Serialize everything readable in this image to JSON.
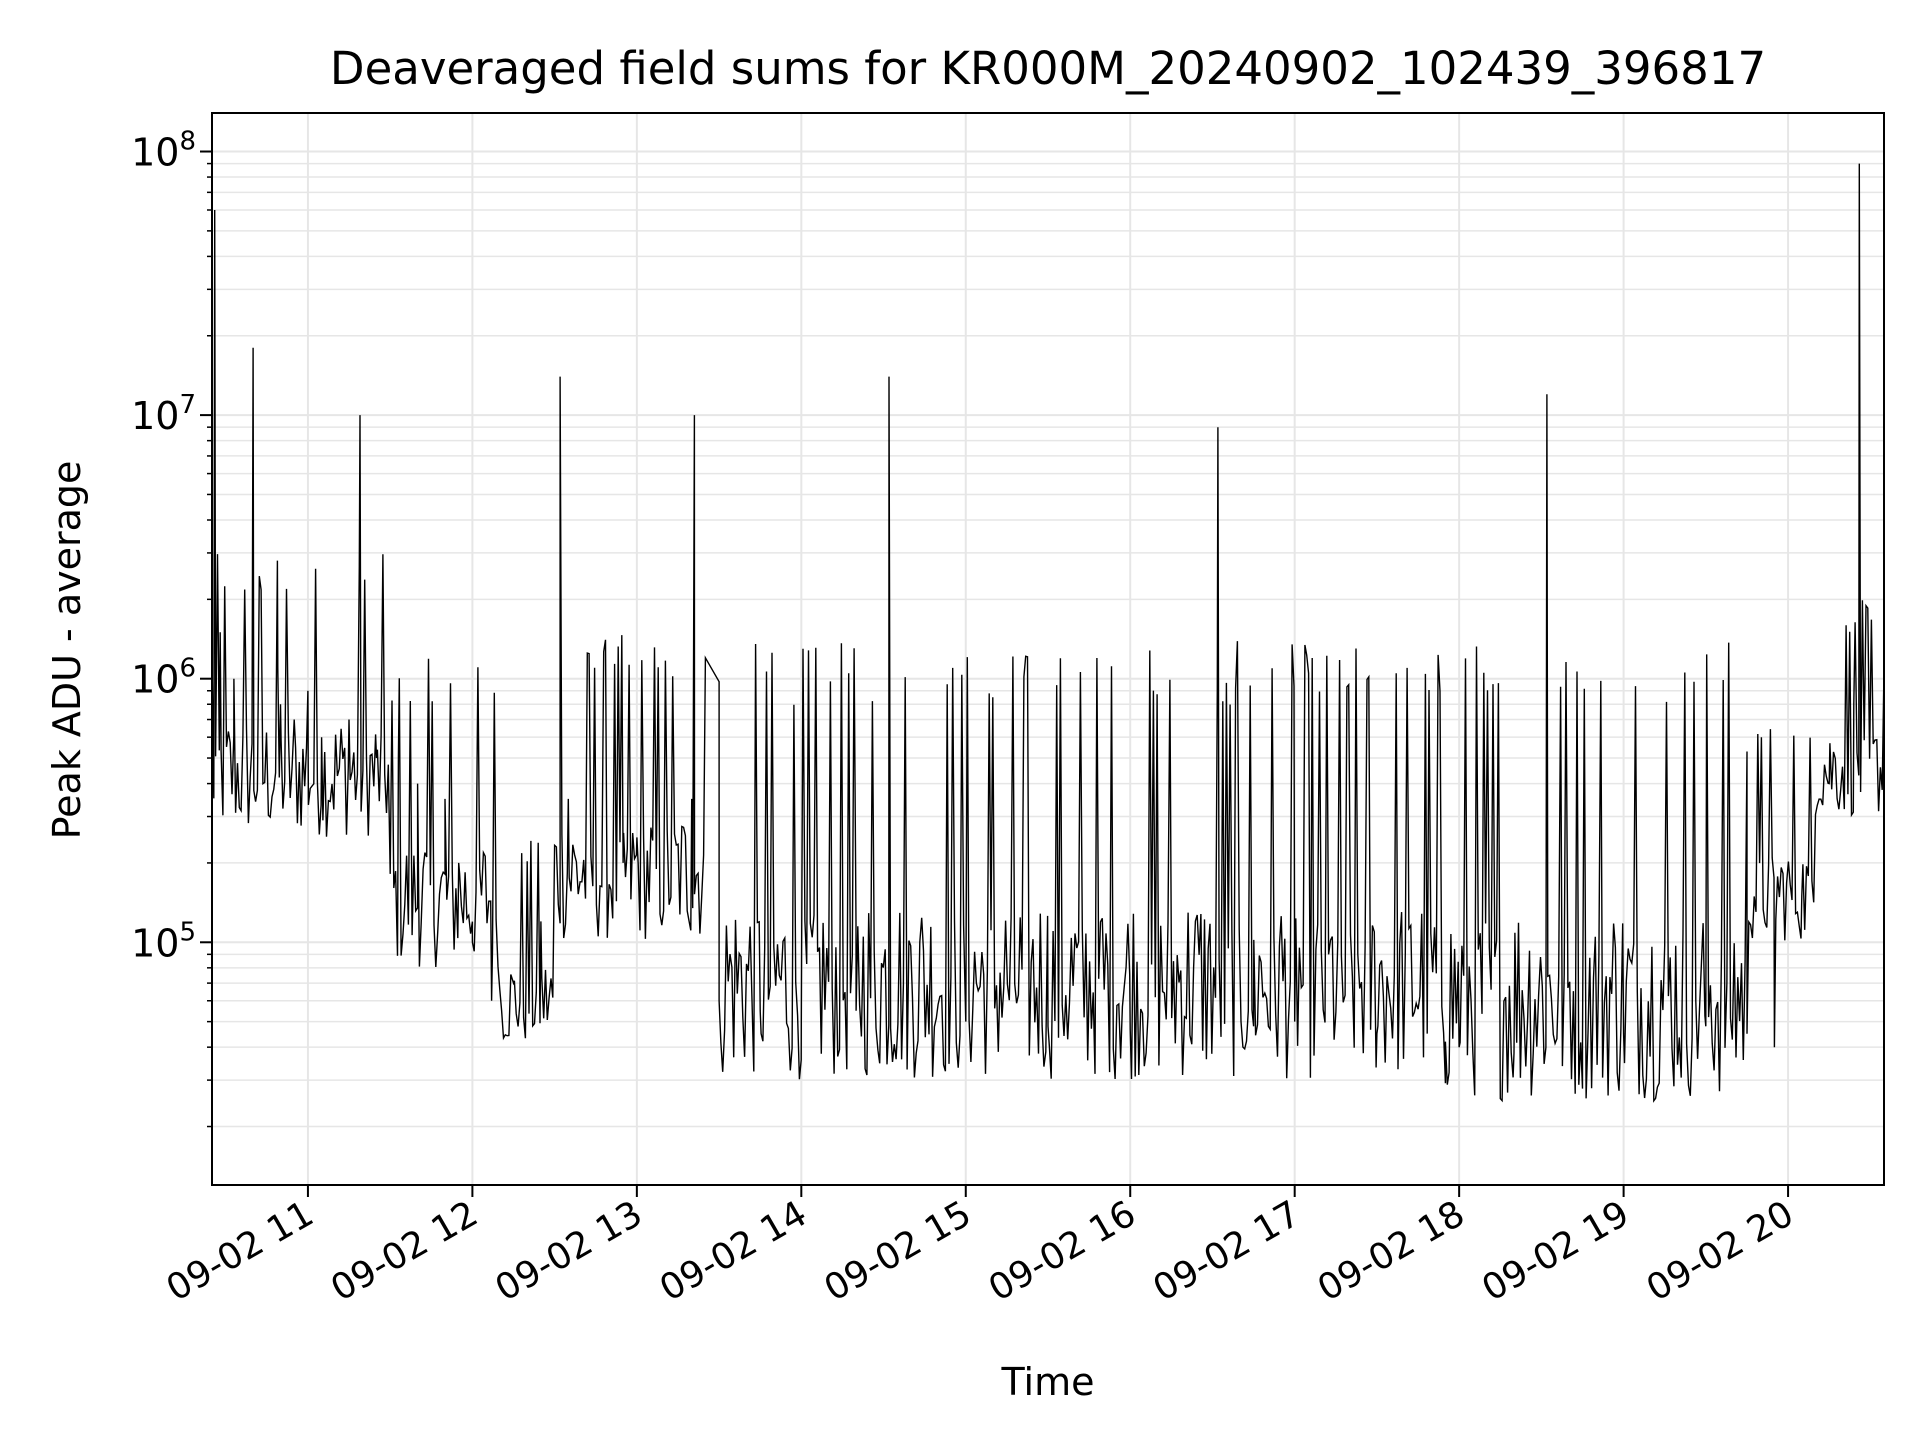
{
  "chart_data": {
    "type": "line",
    "title": "Deaveraged field sums for KR000M_20240902_102439_396817",
    "xlabel": "Time",
    "ylabel": "Peak ADU - average",
    "yscale": "log",
    "grid": true,
    "line_color": "#000000",
    "xlim": [
      "2024-09-02 10:25",
      "2024-09-02 20:35"
    ],
    "ylim": [
      12000,
      140000000
    ],
    "x_ticks": [
      "09-02 11",
      "09-02 12",
      "09-02 13",
      "09-02 14",
      "09-02 15",
      "09-02 16",
      "09-02 17",
      "09-02 18",
      "09-02 19",
      "09-02 20"
    ],
    "y_ticks": [
      {
        "base": "10",
        "exp": "5",
        "value": 100000
      },
      {
        "base": "10",
        "exp": "6",
        "value": 1000000
      },
      {
        "base": "10",
        "exp": "7",
        "value": 10000000
      },
      {
        "base": "10",
        "exp": "8",
        "value": 100000000
      }
    ],
    "series": [
      {
        "x": [
          "2024-09-02 10:25",
          "2024-09-02 10:26",
          "2024-09-02 10:28",
          "2024-09-02 10:33",
          "2024-09-02 10:40",
          "2024-09-02 10:49",
          "2024-09-02 10:50",
          "2024-09-02 10:55",
          "2024-09-02 11:00",
          "2024-09-02 11:05",
          "2024-09-02 11:15",
          "2024-09-02 11:19",
          "2024-09-02 11:25",
          "2024-09-02 11:33",
          "2024-09-02 11:40",
          "2024-09-02 11:50",
          "2024-09-02 11:55",
          "2024-09-02 12:00",
          "2024-09-02 12:07",
          "2024-09-02 12:15",
          "2024-09-02 12:25",
          "2024-09-02 12:32",
          "2024-09-02 12:35",
          "2024-09-02 12:45",
          "2024-09-02 12:55",
          "2024-09-02 13:00",
          "2024-09-02 13:10",
          "2024-09-02 13:20",
          "2024-09-02 13:21",
          "2024-09-02 13:25",
          "2024-09-02 13:30",
          "2024-09-02 13:35",
          "2024-09-02 13:45",
          "2024-09-02 14:00",
          "2024-09-02 14:20",
          "2024-09-02 14:32",
          "2024-09-02 14:45",
          "2024-09-02 15:00",
          "2024-09-02 15:30",
          "2024-09-02 16:00",
          "2024-09-02 16:32",
          "2024-09-02 16:45",
          "2024-09-02 17:00",
          "2024-09-02 17:30",
          "2024-09-02 17:55",
          "2024-09-02 18:00",
          "2024-09-02 18:20",
          "2024-09-02 18:32",
          "2024-09-02 18:45",
          "2024-09-02 19:00",
          "2024-09-02 19:30",
          "2024-09-02 19:45",
          "2024-09-02 19:55",
          "2024-09-02 20:05",
          "2024-09-02 20:15",
          "2024-09-02 20:24",
          "2024-09-02 20:26",
          "2024-09-02 20:35"
        ],
        "y": [
          1200000,
          60000000,
          1500000,
          1000000,
          18000000,
          1100000,
          800000,
          700000,
          900000,
          600000,
          700000,
          10000000,
          500000,
          500000,
          400000,
          350000,
          200000,
          100000,
          60000,
          70000,
          120000,
          14000000,
          350000,
          300000,
          200000,
          250000,
          300000,
          350000,
          10000000,
          1200000,
          60000,
          55000,
          55000,
          50000,
          55000,
          14000000,
          55000,
          50000,
          48000,
          47000,
          9000000,
          48000,
          50000,
          45000,
          42000,
          40000,
          38000,
          12000000,
          42000,
          45000,
          48000,
          45000,
          40000,
          150000,
          400000,
          800000,
          90000000,
          1100000
        ],
        "bursts": [
          {
            "start": "2024-09-02 10:25",
            "end": "2024-09-02 11:30",
            "low": 250000,
            "high": 3000000
          },
          {
            "start": "2024-09-02 11:30",
            "end": "2024-09-02 12:10",
            "low": 80000,
            "high": 1200000
          },
          {
            "start": "2024-09-02 12:10",
            "end": "2024-09-02 12:30",
            "low": 40000,
            "high": 250000
          },
          {
            "start": "2024-09-02 12:30",
            "end": "2024-09-02 13:25",
            "low": 100000,
            "high": 1500000
          },
          {
            "start": "2024-09-02 13:30",
            "end": "2024-09-02 17:55",
            "low": 30000,
            "high": 1400000
          },
          {
            "start": "2024-09-02 17:55",
            "end": "2024-09-02 19:45",
            "low": 25000,
            "high": 1500000
          },
          {
            "start": "2024-09-02 19:45",
            "end": "2024-09-02 20:10",
            "low": 100000,
            "high": 700000
          },
          {
            "start": "2024-09-02 20:10",
            "end": "2024-09-02 20:35",
            "low": 300000,
            "high": 2000000
          }
        ]
      }
    ]
  }
}
